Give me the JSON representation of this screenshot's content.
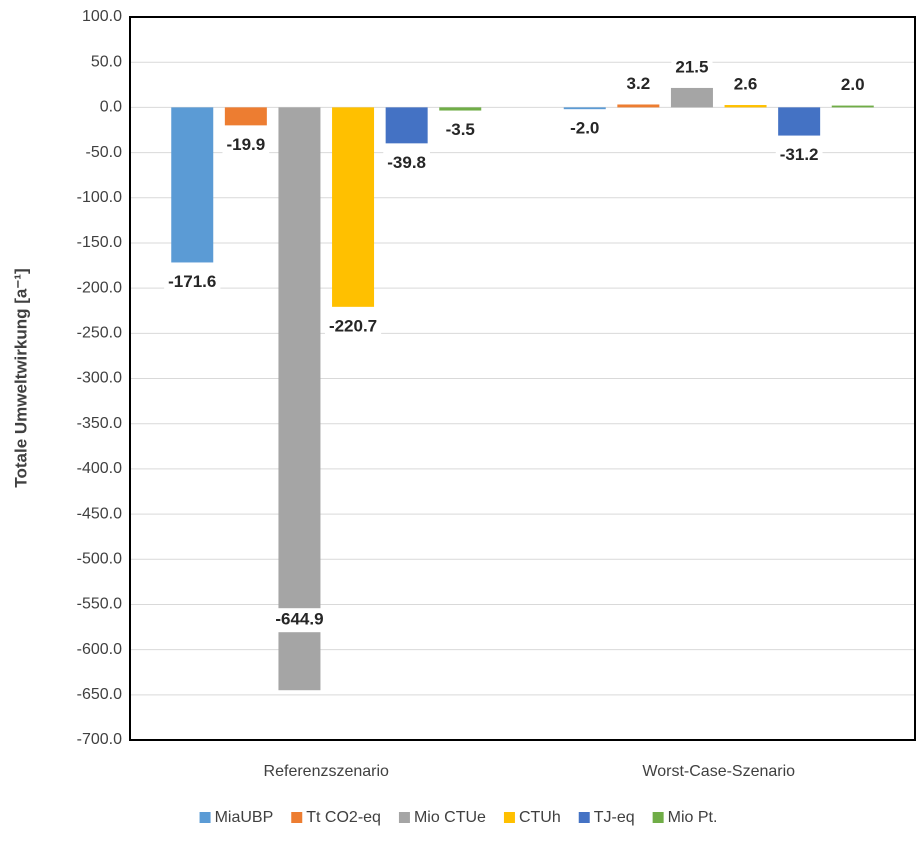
{
  "chart_data": {
    "type": "bar",
    "y_label": "Totale Umweltwirkung [a⁻¹]",
    "categories": [
      "Referenzszenario",
      "Worst-Case-Szenario"
    ],
    "series": [
      {
        "name": "MiaUBP",
        "color": "#5b9bd5",
        "values": [
          -171.6,
          -2.0
        ],
        "value_labels": [
          "-171.6",
          "-2.0"
        ]
      },
      {
        "name": "Tt CO2-eq",
        "color": "#ed7d31",
        "values": [
          -19.9,
          3.2
        ],
        "value_labels": [
          "-19.9",
          "3.2"
        ]
      },
      {
        "name": "Mio CTUe",
        "color": "#a5a5a5",
        "values": [
          -644.9,
          21.5
        ],
        "value_labels": [
          "-644.9",
          "21.5"
        ]
      },
      {
        "name": "CTUh",
        "color": "#ffc000",
        "values": [
          -220.7,
          2.6
        ],
        "value_labels": [
          "-220.7",
          "2.6"
        ]
      },
      {
        "name": "TJ-eq",
        "color": "#4472c4",
        "values": [
          -39.8,
          -31.2
        ],
        "value_labels": [
          "-39.8",
          "-31.2"
        ]
      },
      {
        "name": "Mio Pt.",
        "color": "#70ad47",
        "values": [
          -3.5,
          2.0
        ],
        "value_labels": [
          "-3.5",
          "2.0"
        ]
      }
    ],
    "ylim": [
      -700,
      100
    ],
    "yticks": [
      {
        "value": -700,
        "label": "-700.0"
      },
      {
        "value": -650,
        "label": "-650.0"
      },
      {
        "value": -600,
        "label": "-600.0"
      },
      {
        "value": -550,
        "label": "-550.0"
      },
      {
        "value": -500,
        "label": "-500.0"
      },
      {
        "value": -450,
        "label": "-450.0"
      },
      {
        "value": -400,
        "label": "-400.0"
      },
      {
        "value": -350,
        "label": "-350.0"
      },
      {
        "value": -300,
        "label": "-300.0"
      },
      {
        "value": -250,
        "label": "-250.0"
      },
      {
        "value": -200,
        "label": "-200.0"
      },
      {
        "value": -150,
        "label": "-150.0"
      },
      {
        "value": -100,
        "label": "-100.0"
      },
      {
        "value": -50,
        "label": "-50.0"
      },
      {
        "value": 0,
        "label": "0.0"
      },
      {
        "value": 50,
        "label": "50.0"
      },
      {
        "value": 100,
        "label": "100.0"
      }
    ],
    "grid": true,
    "legend": "bottom"
  }
}
